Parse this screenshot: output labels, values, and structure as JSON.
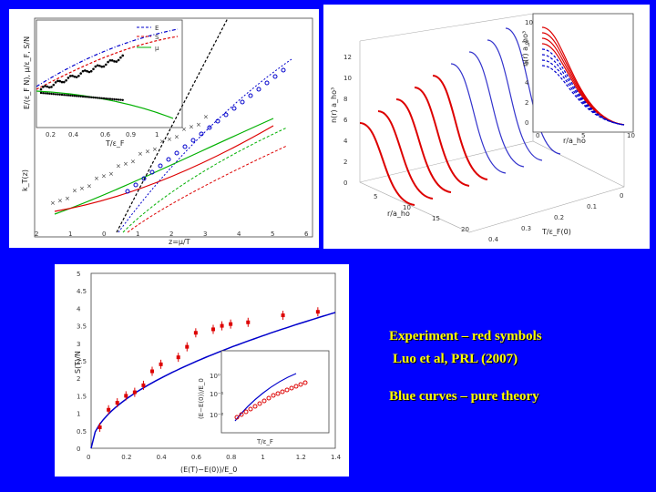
{
  "captions": {
    "experiment": "Experiment – red symbols",
    "reference": "Luo et al, PRL (2007)",
    "theory": "Blue curves – pure theory"
  },
  "colors": {
    "background": "#0000ff",
    "caption": "#ffff00",
    "theory": "#0000cc",
    "experiment": "#dd0000",
    "green": "#00b000"
  },
  "panel_a": {
    "legend": [
      "E",
      "S",
      "μ"
    ],
    "inset_xlabel": "T/ε_F",
    "inset_ylabel": "E/(ε_F N), μ/ε_F, S/N",
    "inset_xticks": [
      "0.2",
      "0.4",
      "0.6",
      "0.9",
      "1"
    ],
    "main_ylabel": "k_T(z)",
    "main_xlabel": "z=μ/T",
    "main_xticks": [
      "2",
      "1",
      "0",
      "1",
      "2",
      "3",
      "4",
      "5",
      "6"
    ]
  },
  "panel_b": {
    "zlabel": "n(r) a_ho³",
    "zticks": [
      "12",
      "10",
      "8",
      "6",
      "4",
      "2",
      "0"
    ],
    "rlabel": "r/a_ho",
    "rticks": [
      "5",
      "10",
      "15",
      "20"
    ],
    "tlabel": "T/ε_F(0)",
    "tticks": [
      "0",
      "0.1",
      "0.2",
      "0.3",
      "0.4"
    ],
    "inset_ylabel": "n(r) a_ho³",
    "inset_xlabel": "r/a_ho",
    "inset_xticks": [
      "0",
      "5",
      "10"
    ],
    "inset_yticks": [
      "10",
      "8",
      "6",
      "4",
      "2",
      "0"
    ]
  },
  "panel_c": {
    "ylabel": "S(T)/N",
    "xlabel": "(E(T)−E(0))/E_0",
    "yticks": [
      "0",
      "0.5",
      "1",
      "1.5",
      "2",
      "2.5",
      "3",
      "3.5",
      "4",
      "4.5",
      "5"
    ],
    "xticks": [
      "0",
      "0.2",
      "0.4",
      "0.6",
      "0.8",
      "1",
      "1.2",
      "1.4"
    ],
    "inset_ylabel": "(E−E(0))/E_0",
    "inset_xlabel": "T/ε_F",
    "inset_yticks": [
      "10⁰",
      "10⁻¹",
      "10⁻²"
    ]
  },
  "chart_data": [
    {
      "type": "scatter",
      "title": "",
      "x": [
        0.05,
        0.1,
        0.15,
        0.2,
        0.25,
        0.3,
        0.35,
        0.4,
        0.5,
        0.55,
        0.6,
        0.7,
        0.75,
        0.8,
        0.9,
        1.1,
        1.3
      ],
      "series": [
        {
          "values": [
            0.6,
            1.1,
            1.3,
            1.5,
            1.6,
            1.8,
            2.2,
            2.4,
            2.6,
            2.9,
            3.3,
            3.4,
            3.5,
            3.55,
            3.6,
            3.8,
            3.9
          ]
        }
      ],
      "xlabel": "(E(T)−E(0))/E_0",
      "ylabel": "S(T)/N",
      "xlim": [
        0,
        1.4
      ],
      "ylim": [
        0,
        5
      ]
    }
  ]
}
